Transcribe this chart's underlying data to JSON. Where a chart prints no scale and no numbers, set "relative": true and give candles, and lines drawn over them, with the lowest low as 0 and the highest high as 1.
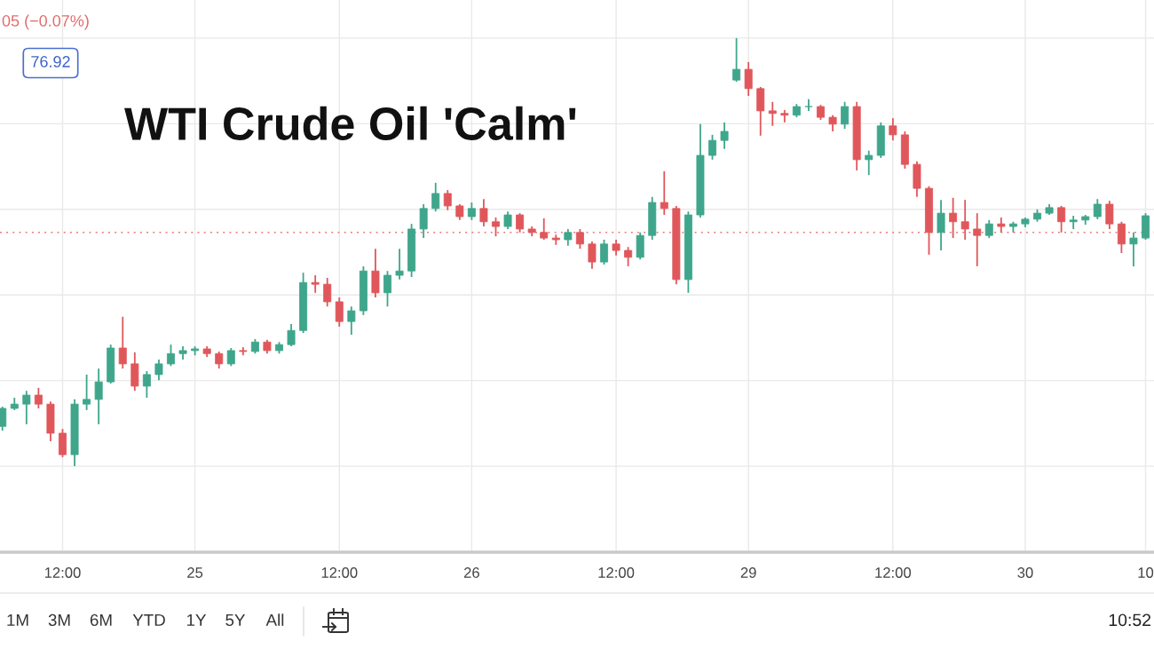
{
  "chart_data": {
    "type": "candlestick",
    "title": "WTI Crude Oil 'Calm'",
    "relative": true,
    "grid": true,
    "categories": [
      null,
      null,
      null,
      null,
      null,
      "12:00",
      null,
      null,
      null,
      null,
      null,
      null,
      null,
      null,
      null,
      null,
      "25",
      null,
      null,
      null,
      null,
      null,
      null,
      null,
      null,
      null,
      null,
      null,
      "12:00",
      null,
      null,
      null,
      null,
      null,
      null,
      null,
      null,
      null,
      null,
      "26",
      null,
      null,
      null,
      null,
      null,
      null,
      null,
      null,
      null,
      null,
      null,
      "12:00",
      null,
      null,
      null,
      null,
      null,
      null,
      null,
      null,
      null,
      null,
      "29",
      null,
      null,
      null,
      null,
      null,
      null,
      null,
      null,
      null,
      null,
      null,
      "12:00",
      null,
      null,
      null,
      null,
      null,
      null,
      null,
      null,
      null,
      null,
      "30",
      null,
      null,
      null,
      null,
      null,
      null,
      null,
      null,
      null,
      "10"
    ],
    "ohlc": [
      [
        0.093,
        0.139,
        0.083,
        0.135
      ],
      [
        0.135,
        0.16,
        0.131,
        0.145
      ],
      [
        0.145,
        0.176,
        0.098,
        0.166
      ],
      [
        0.166,
        0.183,
        0.135,
        0.145
      ],
      [
        0.145,
        0.151,
        0.058,
        0.077
      ],
      [
        0.077,
        0.087,
        0.021,
        0.027
      ],
      [
        0.027,
        0.156,
        0.0,
        0.145
      ],
      [
        0.145,
        0.214,
        0.131,
        0.156
      ],
      [
        0.156,
        0.228,
        0.098,
        0.197
      ],
      [
        0.197,
        0.284,
        0.193,
        0.276
      ],
      [
        0.276,
        0.349,
        0.228,
        0.239
      ],
      [
        0.239,
        0.266,
        0.176,
        0.187
      ],
      [
        0.187,
        0.222,
        0.16,
        0.214
      ],
      [
        0.214,
        0.249,
        0.201,
        0.239
      ],
      [
        0.239,
        0.284,
        0.234,
        0.263
      ],
      [
        0.263,
        0.28,
        0.249,
        0.27
      ],
      [
        0.27,
        0.28,
        0.259,
        0.274
      ],
      [
        0.274,
        0.28,
        0.255,
        0.263
      ],
      [
        0.263,
        0.268,
        0.228,
        0.239
      ],
      [
        0.239,
        0.276,
        0.234,
        0.27
      ],
      [
        0.27,
        0.278,
        0.259,
        0.268
      ],
      [
        0.268,
        0.297,
        0.263,
        0.29
      ],
      [
        0.29,
        0.295,
        0.263,
        0.27
      ],
      [
        0.27,
        0.29,
        0.263,
        0.284
      ],
      [
        0.284,
        0.332,
        0.28,
        0.317
      ],
      [
        0.317,
        0.452,
        0.311,
        0.429
      ],
      [
        0.429,
        0.446,
        0.405,
        0.425
      ],
      [
        0.425,
        0.44,
        0.373,
        0.384
      ],
      [
        0.384,
        0.394,
        0.326,
        0.338
      ],
      [
        0.338,
        0.373,
        0.307,
        0.363
      ],
      [
        0.363,
        0.467,
        0.353,
        0.456
      ],
      [
        0.456,
        0.508,
        0.394,
        0.405
      ],
      [
        0.405,
        0.456,
        0.373,
        0.446
      ],
      [
        0.446,
        0.508,
        0.436,
        0.456
      ],
      [
        0.456,
        0.566,
        0.442,
        0.554
      ],
      [
        0.554,
        0.612,
        0.533,
        0.602
      ],
      [
        0.602,
        0.662,
        0.595,
        0.637
      ],
      [
        0.637,
        0.645,
        0.598,
        0.608
      ],
      [
        0.608,
        0.612,
        0.575,
        0.583
      ],
      [
        0.583,
        0.616,
        0.575,
        0.602
      ],
      [
        0.602,
        0.624,
        0.56,
        0.571
      ],
      [
        0.571,
        0.581,
        0.537,
        0.56
      ],
      [
        0.56,
        0.595,
        0.554,
        0.587
      ],
      [
        0.587,
        0.591,
        0.546,
        0.554
      ],
      [
        0.554,
        0.56,
        0.537,
        0.546
      ],
      [
        0.546,
        0.579,
        0.529,
        0.533
      ],
      [
        0.533,
        0.541,
        0.517,
        0.529
      ],
      [
        0.529,
        0.554,
        0.515,
        0.546
      ],
      [
        0.546,
        0.554,
        0.508,
        0.519
      ],
      [
        0.519,
        0.525,
        0.461,
        0.477
      ],
      [
        0.477,
        0.529,
        0.471,
        0.519
      ],
      [
        0.519,
        0.529,
        0.492,
        0.504
      ],
      [
        0.504,
        0.512,
        0.467,
        0.488
      ],
      [
        0.488,
        0.546,
        0.483,
        0.539
      ],
      [
        0.539,
        0.629,
        0.529,
        0.616
      ],
      [
        0.616,
        0.689,
        0.587,
        0.602
      ],
      [
        0.602,
        0.608,
        0.425,
        0.436
      ],
      [
        0.436,
        0.595,
        0.405,
        0.587
      ],
      [
        0.587,
        0.799,
        0.581,
        0.726
      ],
      [
        0.726,
        0.774,
        0.716,
        0.761
      ],
      [
        0.761,
        0.803,
        0.741,
        0.782
      ],
      [
        0.902,
        1.0,
        0.898,
        0.927
      ],
      [
        0.927,
        0.944,
        0.865,
        0.882
      ],
      [
        0.882,
        0.886,
        0.772,
        0.83
      ],
      [
        0.83,
        0.851,
        0.795,
        0.824
      ],
      [
        0.824,
        0.832,
        0.803,
        0.82
      ],
      [
        0.82,
        0.846,
        0.815,
        0.84
      ],
      [
        0.84,
        0.857,
        0.83,
        0.84
      ],
      [
        0.84,
        0.844,
        0.809,
        0.815
      ],
      [
        0.815,
        0.82,
        0.782,
        0.799
      ],
      [
        0.799,
        0.851,
        0.788,
        0.84
      ],
      [
        0.84,
        0.851,
        0.691,
        0.716
      ],
      [
        0.716,
        0.737,
        0.68,
        0.726
      ],
      [
        0.726,
        0.803,
        0.72,
        0.795
      ],
      [
        0.795,
        0.813,
        0.761,
        0.774
      ],
      [
        0.774,
        0.782,
        0.695,
        0.705
      ],
      [
        0.705,
        0.712,
        0.629,
        0.649
      ],
      [
        0.649,
        0.654,
        0.494,
        0.546
      ],
      [
        0.546,
        0.622,
        0.504,
        0.591
      ],
      [
        0.591,
        0.627,
        0.533,
        0.571
      ],
      [
        0.571,
        0.622,
        0.529,
        0.554
      ],
      [
        0.554,
        0.591,
        0.467,
        0.539
      ],
      [
        0.539,
        0.575,
        0.533,
        0.566
      ],
      [
        0.566,
        0.581,
        0.546,
        0.56
      ],
      [
        0.56,
        0.571,
        0.546,
        0.566
      ],
      [
        0.566,
        0.581,
        0.558,
        0.577
      ],
      [
        0.577,
        0.6,
        0.571,
        0.591
      ],
      [
        0.591,
        0.612,
        0.587,
        0.604
      ],
      [
        0.604,
        0.608,
        0.546,
        0.571
      ],
      [
        0.571,
        0.585,
        0.554,
        0.575
      ],
      [
        0.575,
        0.587,
        0.564,
        0.583
      ],
      [
        0.583,
        0.624,
        0.577,
        0.612
      ],
      [
        0.612,
        0.62,
        0.554,
        0.566
      ],
      [
        0.566,
        0.571,
        0.498,
        0.519
      ],
      [
        0.519,
        0.546,
        0.467,
        0.533
      ],
      [
        0.533,
        0.591,
        0.529,
        0.585
      ]
    ],
    "colors": [
      "#3fa68c",
      "#3fa68c",
      "#3fa68c",
      "#e0575b",
      "#e0575b",
      "#e0575b",
      "#3fa68c",
      "#3fa68c",
      "#3fa68c",
      "#3fa68c",
      "#e0575b",
      "#e0575b",
      "#3fa68c",
      "#3fa68c",
      "#3fa68c",
      "#3fa68c",
      "#3fa68c",
      "#e0575b",
      "#e0575b",
      "#3fa68c",
      "#e0575b",
      "#3fa68c",
      "#e0575b",
      "#3fa68c",
      "#3fa68c",
      "#3fa68c",
      "#e0575b",
      "#e0575b",
      "#e0575b",
      "#3fa68c",
      "#3fa68c",
      "#e0575b",
      "#3fa68c",
      "#3fa68c",
      "#3fa68c",
      "#3fa68c",
      "#3fa68c",
      "#e0575b",
      "#e0575b",
      "#3fa68c",
      "#e0575b",
      "#e0575b",
      "#3fa68c",
      "#e0575b",
      "#e0575b",
      "#e0575b",
      "#e0575b",
      "#3fa68c",
      "#e0575b",
      "#e0575b",
      "#3fa68c",
      "#e0575b",
      "#e0575b",
      "#3fa68c",
      "#3fa68c",
      "#e0575b",
      "#e0575b",
      "#3fa68c",
      "#3fa68c",
      "#3fa68c",
      "#3fa68c",
      "#3fa68c",
      "#e0575b",
      "#e0575b",
      "#e0575b",
      "#e0575b",
      "#3fa68c",
      "#3fa68c",
      "#e0575b",
      "#e0575b",
      "#3fa68c",
      "#e0575b",
      "#3fa68c",
      "#3fa68c",
      "#e0575b",
      "#e0575b",
      "#e0575b",
      "#e0575b",
      "#3fa68c",
      "#e0575b",
      "#e0575b",
      "#e0575b",
      "#3fa68c",
      "#e0575b",
      "#3fa68c",
      "#3fa68c",
      "#3fa68c",
      "#3fa68c",
      "#e0575b",
      "#3fa68c",
      "#3fa68c",
      "#3fa68c",
      "#e0575b",
      "#e0575b",
      "#3fa68c",
      "#3fa68c"
    ],
    "ref_lines": [
      {
        "axis": "y",
        "value": 0.546,
        "color": "#e57373",
        "line_style": "dotted"
      }
    ],
    "annotations": [
      "05 (−0.07%)",
      "76.92",
      "1M",
      "3M",
      "6M",
      "YTD",
      "1Y",
      "5Y",
      "All",
      "10:52"
    ]
  }
}
